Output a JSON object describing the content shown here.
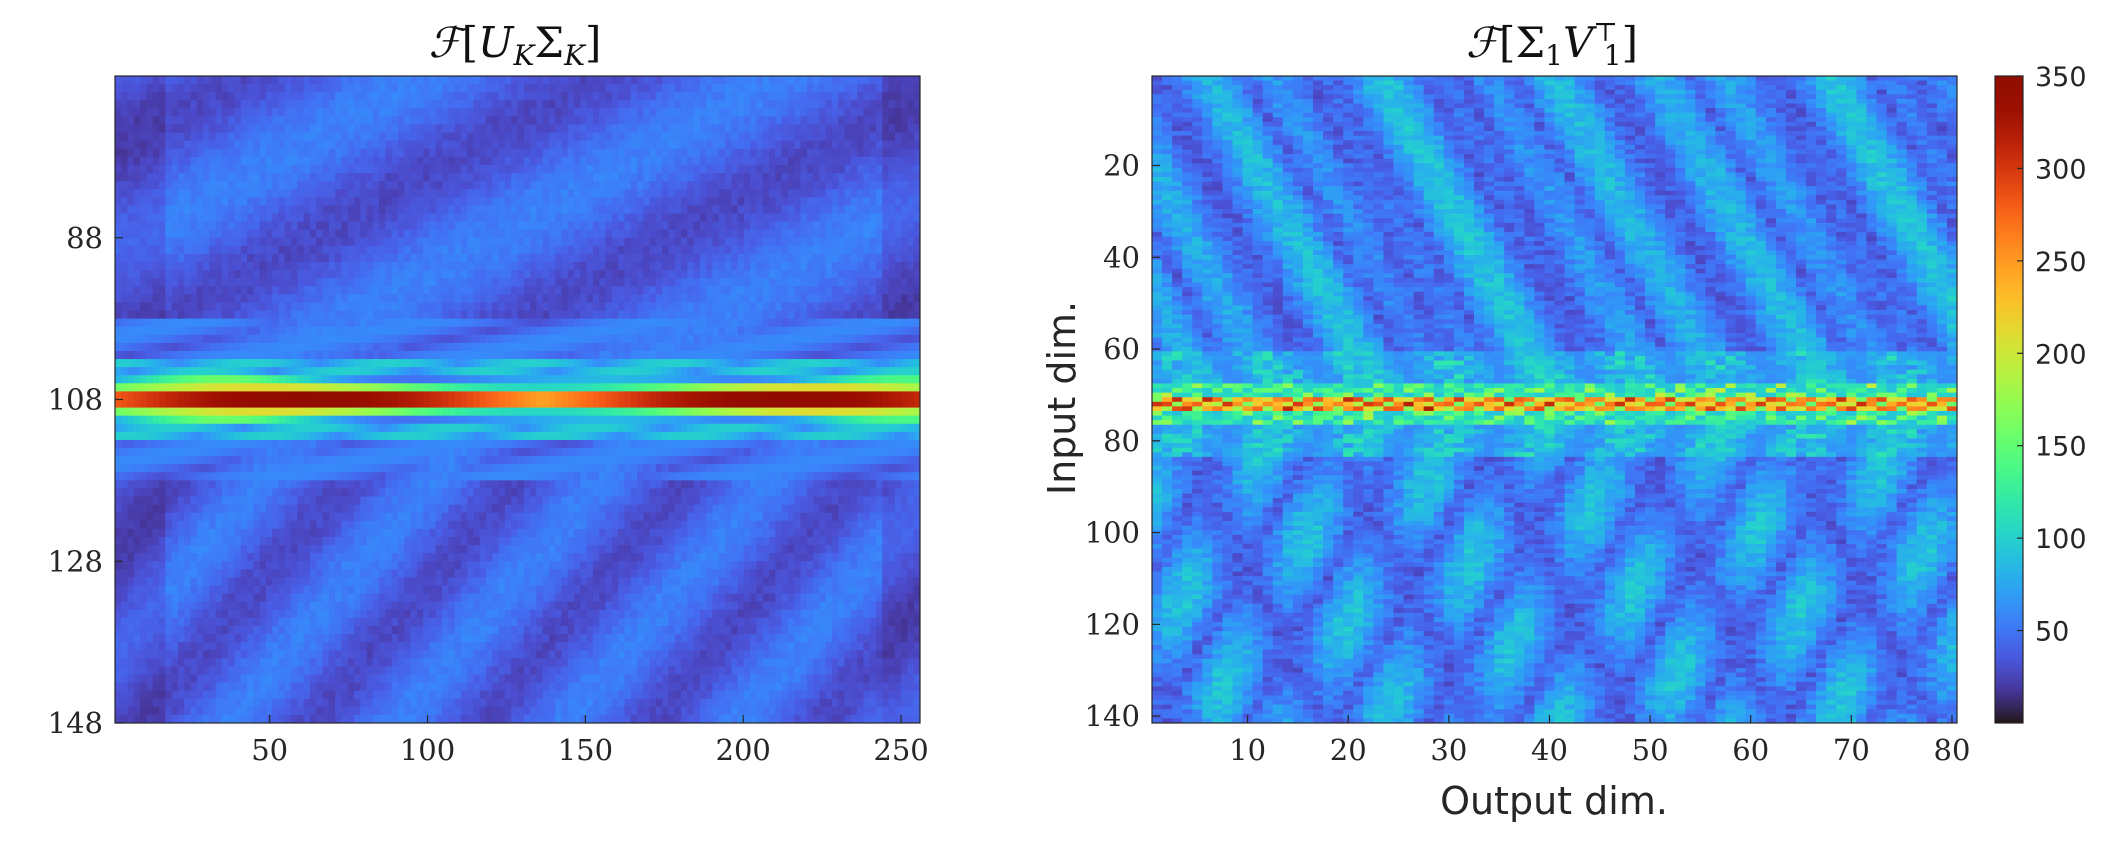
{
  "chart_data": [
    {
      "type": "heatmap",
      "title": "F[U_K Σ_K]",
      "title_parts": {
        "script_f": "ℱ",
        "open": "[",
        "u": "U",
        "sub_k1": "K",
        "sigma": "Σ",
        "sub_k2": "K",
        "close": "]"
      },
      "xlabel": "",
      "ylabel": "",
      "x_range": [
        1,
        256
      ],
      "y_range": [
        68,
        148
      ],
      "y_reversed": true,
      "x_ticks": [
        50,
        100,
        150,
        200,
        250
      ],
      "y_ticks": [
        88,
        108,
        128,
        148
      ],
      "colormap": "turbo",
      "clim": [
        0,
        350
      ],
      "peak_row": 108,
      "peak_value_range": [
        240,
        350
      ],
      "description_of_values": "low background (≈20–60) with a bright horizontal band centred on row 108"
    },
    {
      "type": "heatmap",
      "title": "F[Σ_1 V_1^⊤]",
      "title_parts": {
        "script_f": "ℱ",
        "open": "[",
        "sigma": "Σ",
        "sub_1a": "1",
        "v": "V",
        "sub_1b": "1",
        "sup_t": "⊤",
        "close": "]"
      },
      "xlabel": "Output dim.",
      "ylabel": "Input dim.",
      "x_range": [
        1,
        80
      ],
      "y_range": [
        1,
        141
      ],
      "y_reversed": true,
      "x_ticks": [
        10,
        20,
        30,
        40,
        50,
        60,
        70,
        80
      ],
      "y_ticks": [
        20,
        40,
        60,
        80,
        100,
        120,
        140
      ],
      "colormap": "turbo",
      "clim": [
        0,
        350
      ],
      "peak_row": 72,
      "peak_value_range": [
        200,
        320
      ],
      "colorbar": {
        "ticks": [
          50,
          100,
          150,
          200,
          250,
          300,
          350
        ],
        "range": [
          0,
          350
        ]
      }
    }
  ],
  "colors": {
    "turbo_low": "#30123b",
    "turbo_mid_blue": "#4686fb",
    "turbo_green": "#a4fc3c",
    "turbo_orange": "#fb8022",
    "turbo_high": "#7a0403"
  }
}
